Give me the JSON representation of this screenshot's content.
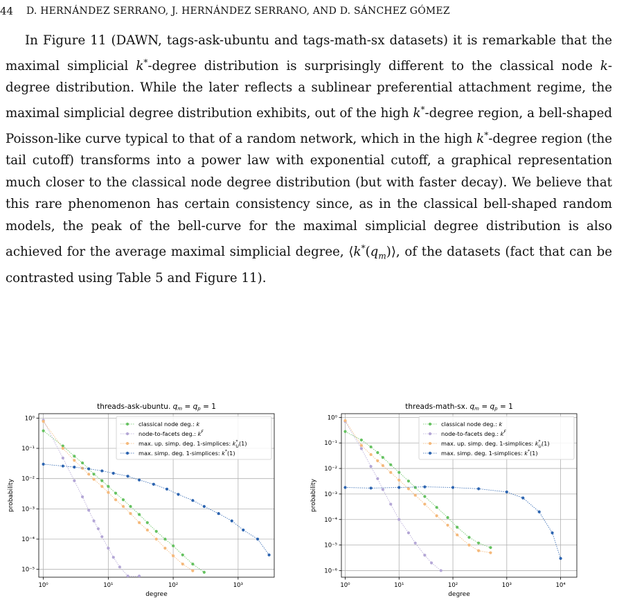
{
  "header": {
    "page_number": "44",
    "running_title": "D. HERNÁNDEZ SERRANO, J. HERNÁNDEZ SERRANO, AND D. SÁNCHEZ GÓMEZ"
  },
  "paragraph": [
    {
      "t": "In Figure 11 (DAWN, tags-ask-ubuntu and tags-math-sx datasets) it is remarkable that the maximal simplicial "
    },
    {
      "t": "k",
      "i": true
    },
    {
      "t": "*",
      "sup": true
    },
    {
      "t": "-degree distribution is surprisingly different to the classical node "
    },
    {
      "t": "k",
      "i": true
    },
    {
      "t": "-degree distribution. While the later reflects a sublinear preferential attachment regime, the maximal simplicial degree distribution exhibits, out of the high "
    },
    {
      "t": "k",
      "i": true
    },
    {
      "t": "*",
      "sup": true
    },
    {
      "t": "-degree region, a bell-shaped Poisson-like curve typical to that of a random network, which in the high "
    },
    {
      "t": "k",
      "i": true
    },
    {
      "t": "*",
      "sup": true
    },
    {
      "t": "-degree region (the tail cutoff) transforms into a power law with exponential cutoff, a graphical representation much closer to the classical node degree distribution (but with faster decay). We believe that this rare phenomenon has certain consistency since, as in the classical bell-shaped random models, the peak of the bell-curve for the maximal simplicial degree distribution is also achieved for the average maximal simplicial degree, ⟨"
    },
    {
      "t": "k",
      "i": true
    },
    {
      "t": "*",
      "sup": true
    },
    {
      "t": "("
    },
    {
      "t": "q",
      "i": true
    },
    {
      "t": "m",
      "sub": true,
      "i": true
    },
    {
      "t": ")⟩, of the datasets (fact that can be contrasted using Table 5 and Figure 11)."
    }
  ],
  "colors": {
    "classical": "#66c261",
    "facets": "#b4a7d6",
    "upper": "#f5b97b",
    "maximal": "#2c64b0",
    "grid": "#b0b0b0"
  },
  "chart_data": [
    {
      "type": "scatter",
      "title": "threads-ask-ubuntu. q_m = q_p = 1",
      "xlabel": "degree",
      "ylabel": "probability",
      "xscale": "log",
      "yscale": "log",
      "xlim": [
        0.85,
        3600
      ],
      "ylim": [
        5.5e-06,
        1.4
      ],
      "xticks": [
        1,
        10,
        100,
        1000
      ],
      "xticklabels": [
        "10⁰",
        "10¹",
        "10²",
        "10³"
      ],
      "yticks": [
        1,
        0.1,
        0.01,
        0.001,
        0.0001,
        1e-05
      ],
      "yticklabels": [
        "10⁰",
        "10⁻¹",
        "10⁻²",
        "10⁻³",
        "10⁻⁴",
        "10⁻⁵"
      ],
      "grid": true,
      "legend": "top-right",
      "series": [
        {
          "name": "classical node deg.: k",
          "color_key": "classical",
          "x": [
            1,
            2,
            3,
            4,
            5,
            6,
            8,
            10,
            13,
            17,
            22,
            30,
            40,
            55,
            75,
            100,
            140,
            200,
            300
          ],
          "y": [
            0.38,
            0.12,
            0.055,
            0.033,
            0.021,
            0.014,
            0.0085,
            0.0055,
            0.0033,
            0.002,
            0.0012,
            0.00065,
            0.00035,
            0.00018,
            0.0001,
            6e-05,
            3e-05,
            1.5e-05,
            8e-06
          ]
        },
        {
          "name": "node-to-facets deg.: k^F",
          "color_key": "facets",
          "x": [
            1,
            2,
            3,
            4,
            5,
            6,
            7,
            8,
            10,
            12,
            15,
            20,
            30
          ],
          "y": [
            0.85,
            0.048,
            0.0085,
            0.0025,
            0.0009,
            0.0004,
            0.00022,
            0.00012,
            5e-05,
            2.5e-05,
            1.2e-05,
            6e-06,
            6e-06
          ]
        },
        {
          "name": "max. up. simp. deg. 1-simplices: k_U^*(1)",
          "color_key": "upper",
          "x": [
            1,
            2,
            3,
            4,
            5,
            6,
            8,
            10,
            13,
            17,
            22,
            30,
            40,
            55,
            75,
            100,
            140,
            200
          ],
          "y": [
            0.78,
            0.1,
            0.04,
            0.022,
            0.014,
            0.0095,
            0.0055,
            0.0035,
            0.002,
            0.0012,
            0.0007,
            0.00035,
            0.0002,
            0.0001,
            5e-05,
            2.8e-05,
            1.5e-05,
            9e-06
          ]
        },
        {
          "name": "max. simp. deg. 1-simplices: k^*(1)",
          "color_key": "maximal",
          "x": [
            1,
            2,
            3,
            5,
            8,
            12,
            20,
            30,
            50,
            80,
            120,
            200,
            300,
            500,
            800,
            1200,
            2000,
            3000
          ],
          "y": [
            0.03,
            0.026,
            0.024,
            0.021,
            0.018,
            0.015,
            0.012,
            0.009,
            0.0065,
            0.0045,
            0.003,
            0.0019,
            0.0012,
            0.0007,
            0.0004,
            0.0002,
            0.0001,
            3e-05
          ]
        }
      ]
    },
    {
      "type": "scatter",
      "title": "threads-math-sx. q_m = q_p = 1",
      "xlabel": "degree",
      "ylabel": "probability",
      "xscale": "log",
      "yscale": "log",
      "xlim": [
        0.85,
        20000
      ],
      "ylim": [
        5.5e-07,
        1.4
      ],
      "xticks": [
        1,
        10,
        100,
        1000,
        10000
      ],
      "xticklabels": [
        "10⁰",
        "10¹",
        "10²",
        "10³",
        "10⁴"
      ],
      "yticks": [
        1,
        0.1,
        0.01,
        0.001,
        0.0001,
        1e-05,
        1e-06
      ],
      "yticklabels": [
        "10⁰",
        "10⁻¹",
        "10⁻²",
        "10⁻³",
        "10⁻⁴",
        "10⁻⁵",
        "10⁻⁶"
      ],
      "grid": true,
      "legend": "top-right",
      "series": [
        {
          "name": "classical node deg.: k",
          "color_key": "classical",
          "x": [
            1,
            2,
            3,
            4,
            5,
            7,
            10,
            15,
            20,
            30,
            50,
            80,
            120,
            200,
            300,
            500
          ],
          "y": [
            0.28,
            0.13,
            0.07,
            0.042,
            0.027,
            0.014,
            0.007,
            0.0032,
            0.0018,
            0.0008,
            0.0003,
            0.00012,
            5e-05,
            2e-05,
            1.2e-05,
            8e-06
          ]
        },
        {
          "name": "node-to-facets deg.: k^F",
          "color_key": "facets",
          "x": [
            1,
            2,
            3,
            4,
            5,
            7,
            10,
            15,
            20,
            30,
            40,
            60
          ],
          "y": [
            0.7,
            0.06,
            0.012,
            0.004,
            0.0015,
            0.0004,
            0.0001,
            3e-05,
            1.2e-05,
            4e-06,
            2e-06,
            1e-06
          ]
        },
        {
          "name": "max. up. simp. deg. 1-simplices: k_U^*(1)",
          "color_key": "upper",
          "x": [
            1,
            2,
            3,
            4,
            5,
            7,
            10,
            15,
            20,
            30,
            50,
            80,
            120,
            200,
            300,
            500
          ],
          "y": [
            0.75,
            0.08,
            0.035,
            0.02,
            0.013,
            0.007,
            0.0035,
            0.0016,
            0.0009,
            0.0004,
            0.00014,
            6e-05,
            2.5e-05,
            1e-05,
            6e-06,
            5e-06
          ]
        },
        {
          "name": "max. simp. deg. 1-simplices: k^*(1)",
          "color_key": "maximal",
          "x": [
            1,
            3,
            10,
            30,
            100,
            300,
            1000,
            2000,
            4000,
            7000,
            10000
          ],
          "y": [
            0.0018,
            0.0017,
            0.0018,
            0.0019,
            0.0018,
            0.0016,
            0.0012,
            0.0007,
            0.0002,
            3e-05,
            3e-06
          ]
        }
      ]
    }
  ]
}
